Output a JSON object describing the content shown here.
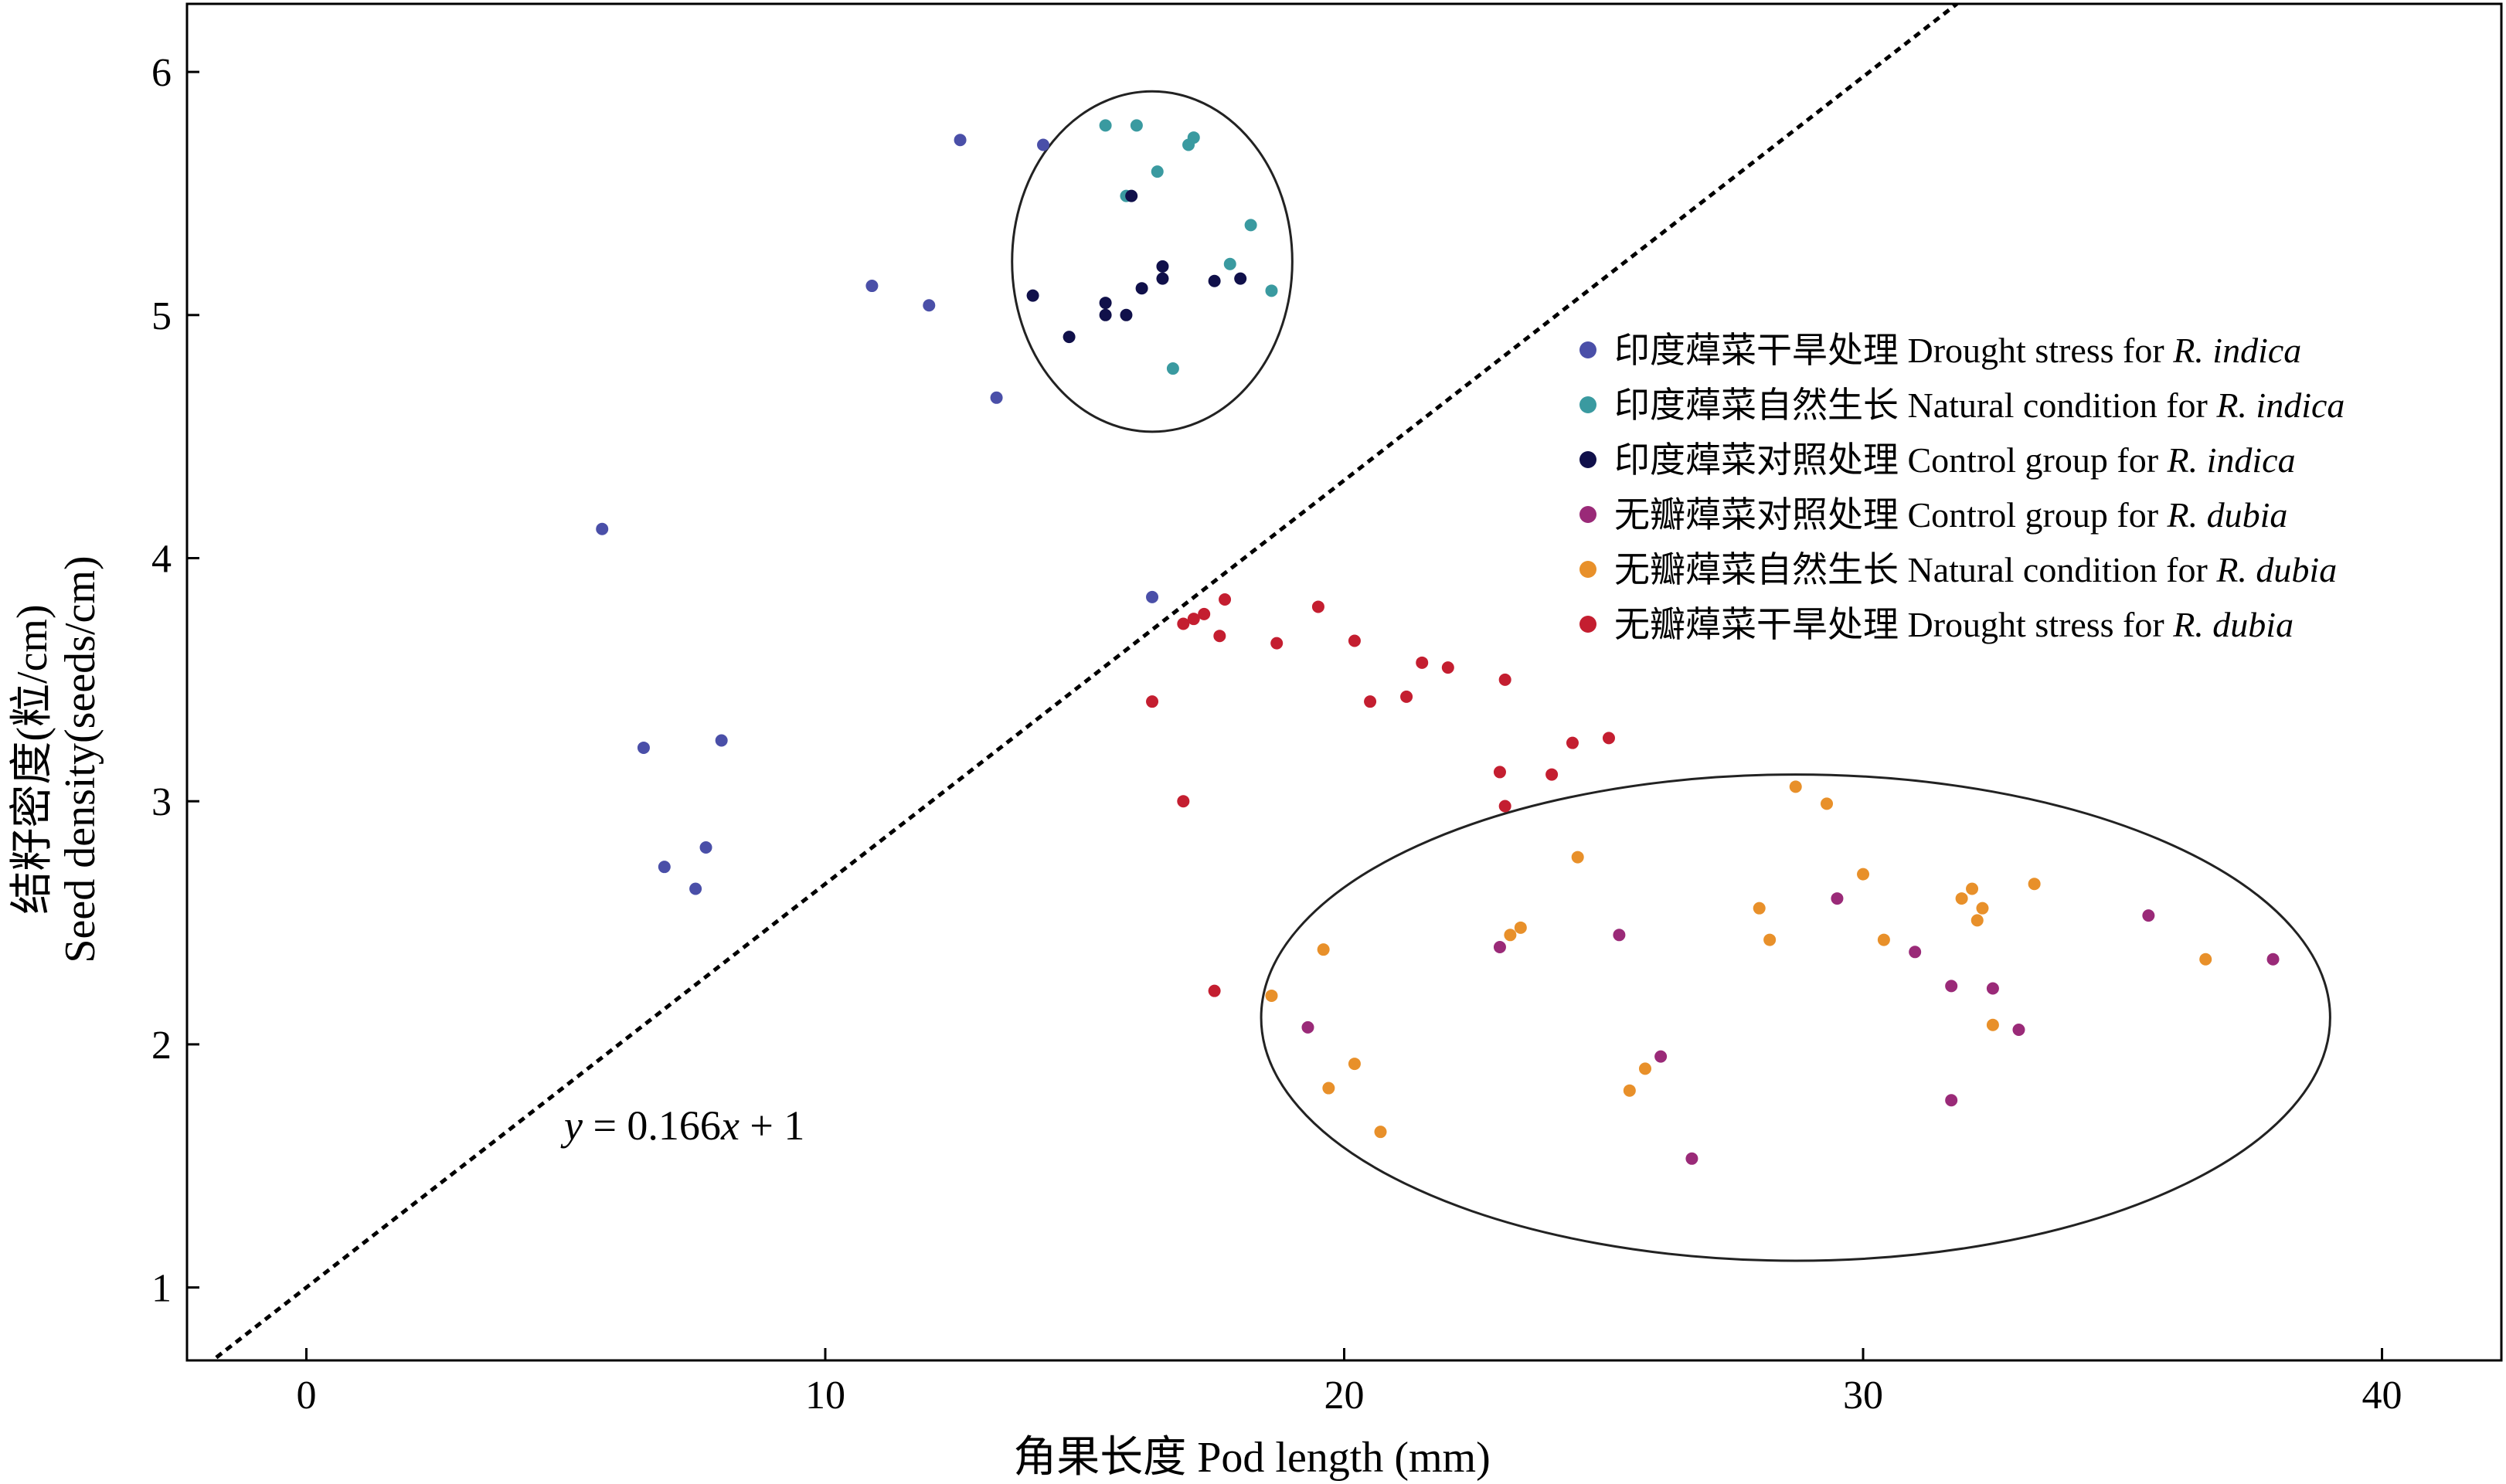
{
  "chart_data": {
    "type": "scatter",
    "xlabel": "角果长度 Pod length (mm)",
    "ylabel_line1": "结籽密度(粒/cm)",
    "ylabel_line2": "Seed density(seeds/cm)",
    "xlim": [
      -2.3,
      42.3
    ],
    "ylim": [
      0.7,
      6.28
    ],
    "xticks": [
      0,
      10,
      20,
      30,
      40
    ],
    "yticks": [
      1,
      2,
      3,
      4,
      5,
      6
    ],
    "grid": false,
    "legend_position": "right",
    "series": [
      {
        "name_cn": "印度蔊菜干旱处理",
        "name_en": "Drought stress for ",
        "name_species": "R. indica",
        "color": "#4a4fa8",
        "points": [
          [
            12.6,
            5.72
          ],
          [
            14.2,
            5.7
          ],
          [
            10.9,
            5.12
          ],
          [
            12.0,
            5.04
          ],
          [
            13.3,
            4.66
          ],
          [
            5.7,
            4.12
          ],
          [
            6.5,
            3.22
          ],
          [
            8.0,
            3.25
          ],
          [
            7.7,
            2.81
          ],
          [
            6.9,
            2.73
          ],
          [
            7.5,
            2.64
          ],
          [
            16.3,
            3.84
          ]
        ]
      },
      {
        "name_cn": "印度蔊菜自然生长",
        "name_en": "Natural condition for ",
        "name_species": "R. indica",
        "color": "#3a9aa0",
        "points": [
          [
            15.4,
            5.78
          ],
          [
            16.0,
            5.78
          ],
          [
            17.1,
            5.73
          ],
          [
            17.0,
            5.7
          ],
          [
            16.4,
            5.59
          ],
          [
            15.8,
            5.49
          ],
          [
            18.2,
            5.37
          ],
          [
            17.8,
            5.21
          ],
          [
            18.6,
            5.1
          ],
          [
            16.7,
            4.78
          ]
        ]
      },
      {
        "name_cn": "印度蔊菜对照处理",
        "name_en": "Control group for ",
        "name_species": "R. indica",
        "color": "#10104a",
        "points": [
          [
            15.9,
            5.49
          ],
          [
            16.5,
            5.2
          ],
          [
            16.5,
            5.15
          ],
          [
            17.5,
            5.14
          ],
          [
            18.0,
            5.15
          ],
          [
            16.1,
            5.11
          ],
          [
            14.0,
            5.08
          ],
          [
            15.4,
            5.05
          ],
          [
            15.4,
            5.0
          ],
          [
            15.8,
            5.0
          ],
          [
            14.7,
            4.91
          ]
        ]
      },
      {
        "name_cn": "无瓣蔊菜对照处理",
        "name_en": "Control group for ",
        "name_species": "R. dubia",
        "color": "#9a2a78",
        "points": [
          [
            29.5,
            2.6
          ],
          [
            35.5,
            2.53
          ],
          [
            25.3,
            2.45
          ],
          [
            23.0,
            2.4
          ],
          [
            31.0,
            2.38
          ],
          [
            37.9,
            2.35
          ],
          [
            31.7,
            2.24
          ],
          [
            32.5,
            2.23
          ],
          [
            19.3,
            2.07
          ],
          [
            33.0,
            2.06
          ],
          [
            26.1,
            1.95
          ],
          [
            31.7,
            1.77
          ],
          [
            26.7,
            1.53
          ]
        ]
      },
      {
        "name_cn": "无瓣蔊菜自然生长",
        "name_en": "Natural condition for ",
        "name_species": "R. dubia",
        "color": "#e8902a",
        "points": [
          [
            28.7,
            3.06
          ],
          [
            29.3,
            2.99
          ],
          [
            24.5,
            2.77
          ],
          [
            30.0,
            2.7
          ],
          [
            33.3,
            2.66
          ],
          [
            32.1,
            2.64
          ],
          [
            31.9,
            2.6
          ],
          [
            32.3,
            2.56
          ],
          [
            28.0,
            2.56
          ],
          [
            32.2,
            2.51
          ],
          [
            23.4,
            2.48
          ],
          [
            23.2,
            2.45
          ],
          [
            30.4,
            2.43
          ],
          [
            28.2,
            2.43
          ],
          [
            19.6,
            2.39
          ],
          [
            36.6,
            2.35
          ],
          [
            18.6,
            2.2
          ],
          [
            32.5,
            2.08
          ],
          [
            20.2,
            1.92
          ],
          [
            25.8,
            1.9
          ],
          [
            19.7,
            1.82
          ],
          [
            25.5,
            1.81
          ],
          [
            20.7,
            1.64
          ]
        ]
      },
      {
        "name_cn": "无瓣蔊菜干旱处理",
        "name_en": "Drought stress for ",
        "name_species": "R. dubia",
        "color": "#c41e30",
        "points": [
          [
            17.7,
            3.83
          ],
          [
            19.5,
            3.8
          ],
          [
            17.3,
            3.77
          ],
          [
            17.1,
            3.75
          ],
          [
            16.9,
            3.73
          ],
          [
            17.6,
            3.68
          ],
          [
            18.7,
            3.65
          ],
          [
            20.2,
            3.66
          ],
          [
            21.5,
            3.57
          ],
          [
            22.0,
            3.55
          ],
          [
            23.1,
            3.5
          ],
          [
            21.2,
            3.43
          ],
          [
            20.5,
            3.41
          ],
          [
            16.3,
            3.41
          ],
          [
            25.1,
            3.26
          ],
          [
            24.4,
            3.24
          ],
          [
            23.0,
            3.12
          ],
          [
            24.0,
            3.11
          ],
          [
            16.9,
            3.0
          ],
          [
            23.1,
            2.98
          ],
          [
            17.5,
            2.22
          ]
        ]
      }
    ],
    "trend_line": {
      "slope": 0.166,
      "intercept": 1,
      "style": "dotted",
      "label_y": "y",
      "label_mid": " = 0.166",
      "label_x": "x",
      "label_end": " + 1"
    },
    "ellipses": [
      {
        "cx": 16.3,
        "cy": 5.22,
        "rx": 2.7,
        "ry": 0.7
      },
      {
        "cx": 28.7,
        "cy": 2.11,
        "rx": 10.3,
        "ry": 1.0
      }
    ]
  }
}
